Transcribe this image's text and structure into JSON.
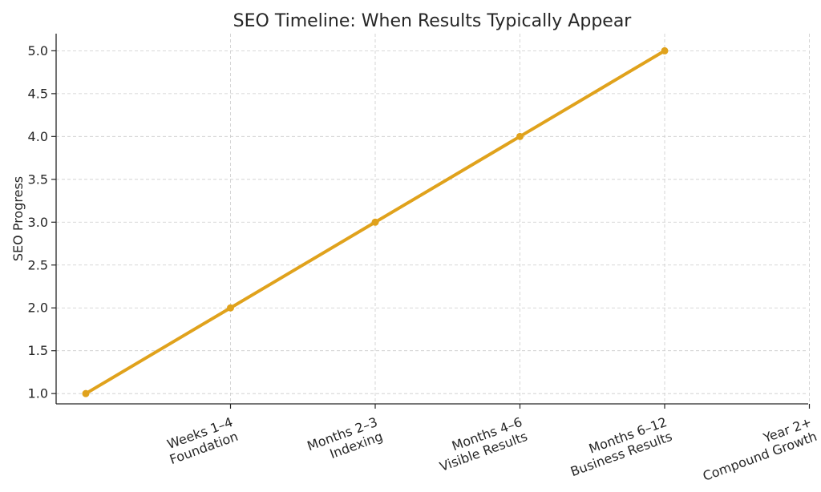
{
  "chart_data": {
    "type": "line",
    "title": "SEO Timeline: When Results Typically Appear",
    "xlabel": "",
    "ylabel": "SEO Progress",
    "categories": [
      "Weeks 1–4\nFoundation",
      "Months 2–3\nIndexing",
      "Months 4–6\nVisible Results",
      "Months 6–12\nBusiness Results",
      "Year 2+\nCompound Growth"
    ],
    "x": [
      0,
      1,
      2,
      3,
      4
    ],
    "series": [
      {
        "values": [
          1,
          2,
          3,
          4,
          5
        ],
        "color": "#e0a21c"
      }
    ],
    "xlim": [
      0,
      5
    ],
    "ylim": [
      0.88,
      5.2
    ],
    "yticks": [
      "1.0",
      "1.5",
      "2.0",
      "2.5",
      "3.0",
      "3.5",
      "4.0",
      "4.5",
      "5.0"
    ],
    "grid": true,
    "legend": "none"
  }
}
